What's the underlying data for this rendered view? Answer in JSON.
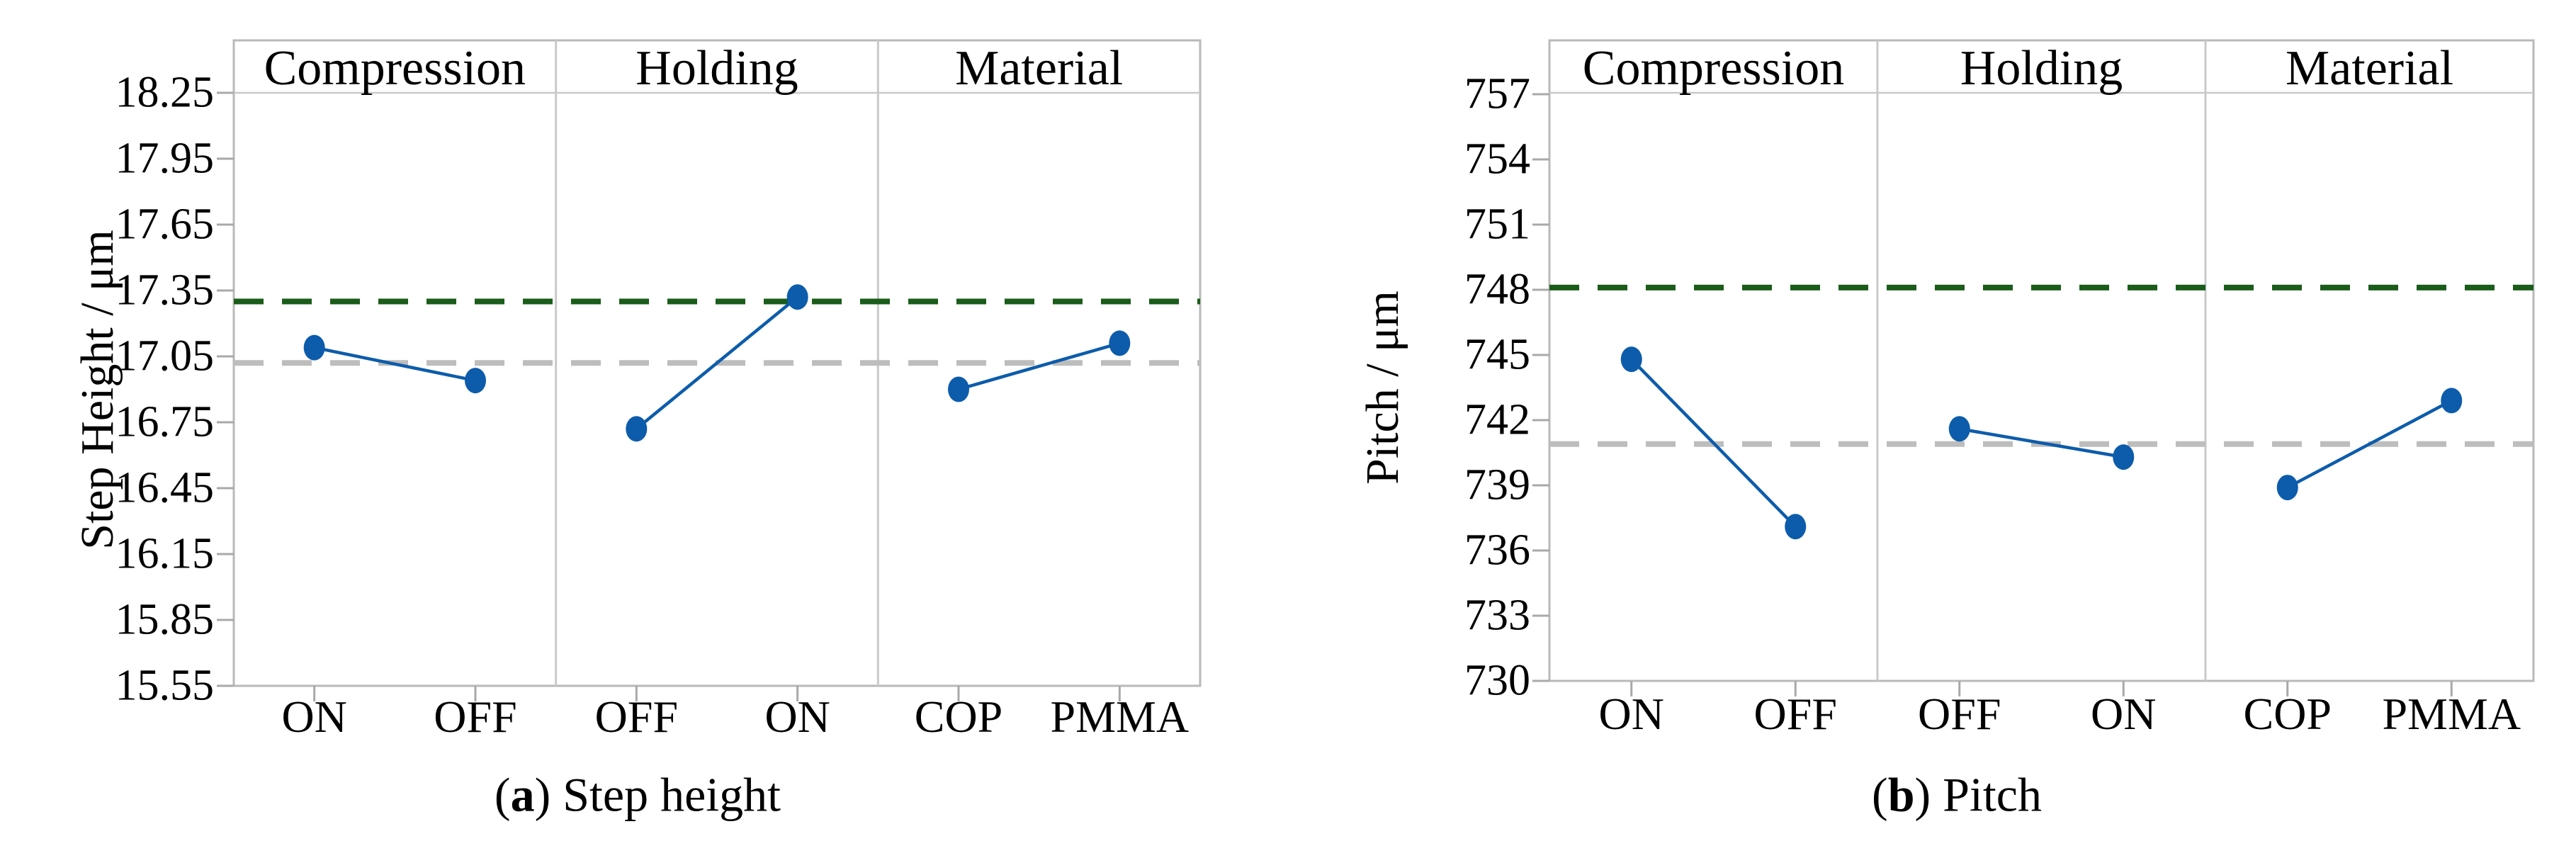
{
  "figure": {
    "background": "#ffffff",
    "caption_a": {
      "prefix": "(",
      "letter": "a",
      "suffix": ") Step height"
    },
    "caption_b": {
      "prefix": "(",
      "letter": "b",
      "suffix": ") Pitch"
    }
  },
  "colors": {
    "series_blue": "#0d5cab",
    "reference_green": "#1a5c1a",
    "mean_gray": "#bdbdbd",
    "frame_gray": "#b9b9b9",
    "inner_line_gray": "#c9c9c9",
    "tick_gray": "#a9a9a9",
    "text": "#000000"
  },
  "chart_data": [
    {
      "type": "line",
      "subfigure": "a",
      "caption": "(a) Step height",
      "ylabel": "Step Height / μm",
      "ylim": [
        15.55,
        18.25
      ],
      "ytick_labels": [
        "18.25",
        "17.95",
        "17.65",
        "17.35",
        "17.05",
        "16.75",
        "16.45",
        "16.15",
        "15.85",
        "15.55"
      ],
      "grid": false,
      "legend": "none",
      "panels": [
        {
          "label": "Compression",
          "categories": [
            "ON",
            "OFF"
          ],
          "values": [
            17.09,
            16.94
          ]
        },
        {
          "label": "Holding",
          "categories": [
            "OFF",
            "ON"
          ],
          "values": [
            16.72,
            17.32
          ]
        },
        {
          "label": "Material",
          "categories": [
            "COP",
            "PMMA"
          ],
          "values": [
            16.9,
            17.11
          ]
        }
      ],
      "mean_line": 17.02,
      "reference_line": 17.3
    },
    {
      "type": "line",
      "subfigure": "b",
      "caption": "(b) Pitch",
      "ylabel": "Pitch / μm",
      "ylim": [
        730,
        757
      ],
      "ytick_labels": [
        "757",
        "754",
        "751",
        "748",
        "745",
        "742",
        "739",
        "736",
        "733",
        "730"
      ],
      "grid": false,
      "legend": "none",
      "panels": [
        {
          "label": "Compression",
          "categories": [
            "ON",
            "OFF"
          ],
          "values": [
            744.8,
            737.1
          ]
        },
        {
          "label": "Holding",
          "categories": [
            "OFF",
            "ON"
          ],
          "values": [
            741.6,
            740.3
          ]
        },
        {
          "label": "Material",
          "categories": [
            "COP",
            "PMMA"
          ],
          "values": [
            738.9,
            742.9
          ]
        }
      ],
      "mean_line": 740.9,
      "reference_line": 748.1
    }
  ]
}
